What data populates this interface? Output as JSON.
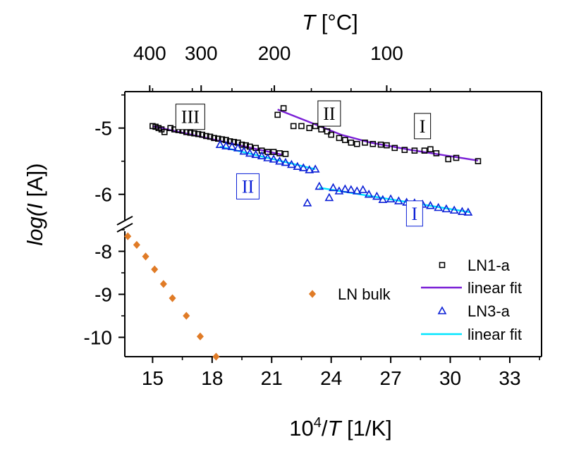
{
  "chart_data": {
    "type": "scatter",
    "title": "",
    "xlabel": {
      "pre": "10",
      "sup": "4",
      "mid": "/",
      "ital": "T",
      "post": " [1/K]"
    },
    "x2label": {
      "ital": "T",
      "post": " [°C]"
    },
    "ylabel": {
      "pre": "log(",
      "ital": "I",
      "post": " [A])"
    },
    "x_range": [
      13.6,
      34.6
    ],
    "x_ticks": [
      15,
      18,
      21,
      24,
      27,
      30,
      33
    ],
    "x_tick_labels": [
      "15",
      "18",
      "21",
      "24",
      "27",
      "30",
      "33"
    ],
    "x2_ticks_celsius": [
      400,
      300,
      200,
      100
    ],
    "x2_tick_labels": [
      "400",
      "300",
      "200",
      "100"
    ],
    "y_upper_range": [
      -6.45,
      -4.45
    ],
    "y_upper_ticks": [
      -5,
      -6
    ],
    "y_upper_tick_labels": [
      "-5",
      "-6"
    ],
    "y_lower_range": [
      -10.45,
      -7.45
    ],
    "y_lower_ticks": [
      -8,
      -9,
      -10
    ],
    "y_lower_tick_labels": [
      "-8",
      "-9",
      "-10"
    ],
    "axis_break": true,
    "grid": false,
    "legend_position": "bottom-right",
    "legend": [
      {
        "label": "LN1-a",
        "marker": "square",
        "color": "#000000"
      },
      {
        "label": "linear fit",
        "marker": "line",
        "color": "#7a1fd6"
      },
      {
        "label": "LN3-a",
        "marker": "triangle",
        "color": "#0a1fd6"
      },
      {
        "label": "linear fit",
        "marker": "line",
        "color": "#00e5ff"
      },
      {
        "label": "LN bulk",
        "marker": "diamond",
        "color": "#e07b26"
      }
    ],
    "series": [
      {
        "name": "LN1-a",
        "marker": "square",
        "color": "#000000",
        "points": [
          [
            15.0,
            -4.97
          ],
          [
            15.15,
            -4.98
          ],
          [
            15.3,
            -5.0
          ],
          [
            15.45,
            -5.02
          ],
          [
            15.6,
            -5.06
          ],
          [
            15.9,
            -5.0
          ],
          [
            16.1,
            -5.02
          ],
          [
            16.3,
            -5.03
          ],
          [
            16.5,
            -5.04
          ],
          [
            16.7,
            -5.06
          ],
          [
            16.9,
            -5.07
          ],
          [
            17.1,
            -5.08
          ],
          [
            17.3,
            -5.09
          ],
          [
            17.5,
            -5.1
          ],
          [
            17.7,
            -5.12
          ],
          [
            17.9,
            -5.13
          ],
          [
            18.1,
            -5.15
          ],
          [
            18.3,
            -5.16
          ],
          [
            18.5,
            -5.17
          ],
          [
            18.7,
            -5.18
          ],
          [
            18.9,
            -5.2
          ],
          [
            19.1,
            -5.21
          ],
          [
            19.3,
            -5.22
          ],
          [
            19.5,
            -5.25
          ],
          [
            19.7,
            -5.26
          ],
          [
            19.9,
            -5.28
          ],
          [
            20.2,
            -5.3
          ],
          [
            20.5,
            -5.34
          ],
          [
            20.8,
            -5.36
          ],
          [
            21.1,
            -5.36
          ],
          [
            21.4,
            -5.38
          ],
          [
            21.7,
            -5.39
          ],
          [
            21.3,
            -4.8
          ],
          [
            21.6,
            -4.7
          ],
          [
            22.1,
            -4.97
          ],
          [
            22.5,
            -4.97
          ],
          [
            22.9,
            -5.0
          ],
          [
            23.2,
            -4.97
          ],
          [
            23.5,
            -5.02
          ],
          [
            23.8,
            -5.05
          ],
          [
            24.0,
            -5.1
          ],
          [
            24.4,
            -5.15
          ],
          [
            24.7,
            -5.18
          ],
          [
            25.0,
            -5.22
          ],
          [
            25.3,
            -5.24
          ],
          [
            25.7,
            -5.22
          ],
          [
            26.1,
            -5.24
          ],
          [
            26.5,
            -5.25
          ],
          [
            26.8,
            -5.26
          ],
          [
            27.2,
            -5.3
          ],
          [
            27.7,
            -5.33
          ],
          [
            28.2,
            -5.34
          ],
          [
            28.7,
            -5.34
          ],
          [
            29.0,
            -5.32
          ],
          [
            29.3,
            -5.38
          ],
          [
            29.9,
            -5.47
          ],
          [
            30.3,
            -5.45
          ],
          [
            31.4,
            -5.5
          ]
        ]
      },
      {
        "name": "linear fit",
        "line_color": "#7a1fd6",
        "segments": [
          [
            [
              15.0,
              -4.97
            ],
            [
              21.5,
              -5.4
            ]
          ],
          [
            [
              21.3,
              -4.72
            ],
            [
              23.0,
              -4.92
            ],
            [
              24.5,
              -5.1
            ],
            [
              26.0,
              -5.22
            ],
            [
              28.0,
              -5.33
            ],
            [
              31.4,
              -5.49
            ]
          ]
        ]
      },
      {
        "name": "LN3-a",
        "marker": "triangle",
        "color": "#0a1fd6",
        "points": [
          [
            18.4,
            -5.25
          ],
          [
            18.7,
            -5.27
          ],
          [
            19.0,
            -5.28
          ],
          [
            19.3,
            -5.3
          ],
          [
            19.6,
            -5.35
          ],
          [
            19.9,
            -5.38
          ],
          [
            20.2,
            -5.4
          ],
          [
            20.5,
            -5.42
          ],
          [
            20.8,
            -5.45
          ],
          [
            21.1,
            -5.47
          ],
          [
            21.4,
            -5.5
          ],
          [
            21.7,
            -5.52
          ],
          [
            22.0,
            -5.55
          ],
          [
            22.3,
            -5.58
          ],
          [
            22.6,
            -5.6
          ],
          [
            22.9,
            -5.63
          ],
          [
            23.2,
            -5.62
          ],
          [
            23.4,
            -5.88
          ],
          [
            22.8,
            -6.13
          ],
          [
            23.9,
            -6.05
          ],
          [
            24.1,
            -5.9
          ],
          [
            24.4,
            -5.95
          ],
          [
            24.7,
            -5.92
          ],
          [
            25.0,
            -5.93
          ],
          [
            25.3,
            -5.95
          ],
          [
            25.6,
            -5.93
          ],
          [
            25.9,
            -6.0
          ],
          [
            26.3,
            -6.03
          ],
          [
            26.6,
            -6.08
          ],
          [
            27.0,
            -6.07
          ],
          [
            27.4,
            -6.1
          ],
          [
            27.8,
            -6.12
          ],
          [
            28.2,
            -6.13
          ],
          [
            28.6,
            -6.15
          ],
          [
            29.0,
            -6.17
          ],
          [
            29.4,
            -6.2
          ],
          [
            29.8,
            -6.22
          ],
          [
            30.2,
            -6.24
          ],
          [
            30.6,
            -6.26
          ],
          [
            30.9,
            -6.27
          ]
        ]
      },
      {
        "name": "linear fit",
        "line_color": "#00e5ff",
        "segments": [
          [
            [
              18.4,
              -5.28
            ],
            [
              23.2,
              -5.62
            ]
          ],
          [
            [
              23.4,
              -5.9
            ],
            [
              31.0,
              -6.27
            ]
          ]
        ]
      },
      {
        "name": "LN bulk",
        "marker": "diamond",
        "color": "#e07b26",
        "points": [
          [
            13.75,
            -7.65
          ],
          [
            14.2,
            -7.85
          ],
          [
            14.65,
            -8.12
          ],
          [
            15.1,
            -8.42
          ],
          [
            15.55,
            -8.76
          ],
          [
            16.0,
            -9.09
          ],
          [
            16.7,
            -9.5
          ],
          [
            17.4,
            -9.98
          ],
          [
            18.2,
            -10.45
          ]
        ]
      }
    ],
    "annotations": [
      {
        "text": "III",
        "color": "#000000",
        "boxed": true,
        "x": 16.9,
        "y": -4.83
      },
      {
        "text": "II",
        "color": "#000000",
        "boxed": true,
        "x": 23.9,
        "y": -4.78
      },
      {
        "text": "I",
        "color": "#000000",
        "boxed": true,
        "x": 28.6,
        "y": -4.97
      },
      {
        "text": "II",
        "color": "#0a1fd6",
        "boxed": true,
        "x": 19.8,
        "y": -5.88
      },
      {
        "text": "I",
        "color": "#0a1fd6",
        "boxed": true,
        "x": 28.2,
        "y": -7.12
      }
    ]
  }
}
